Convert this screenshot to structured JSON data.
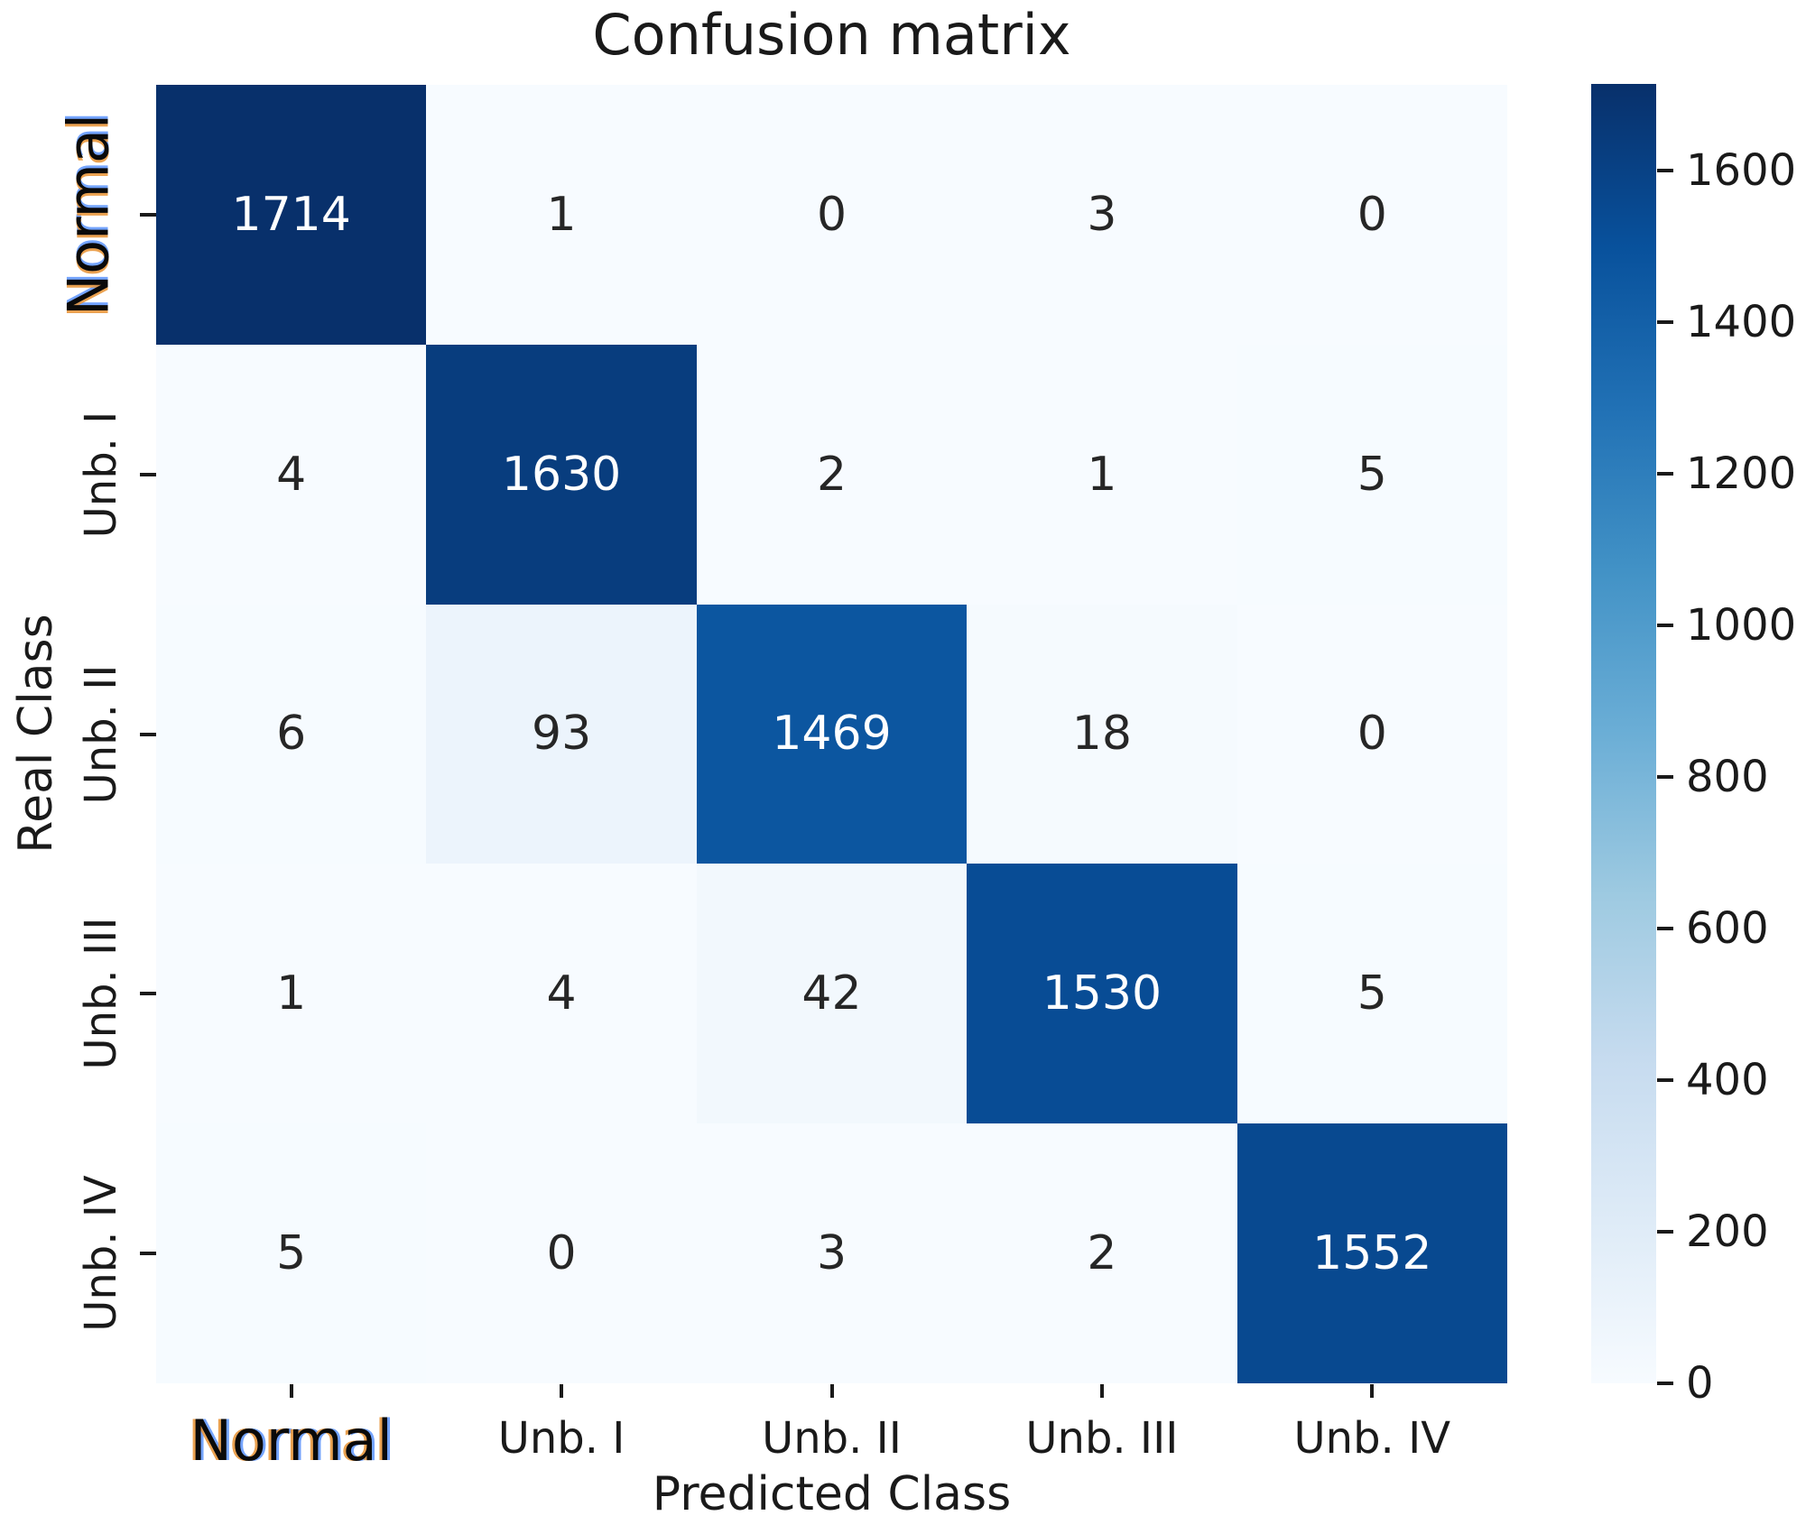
{
  "title": "Confusion matrix",
  "axes": {
    "x_label": "Predicted Class",
    "y_label": "Real Class"
  },
  "classes": [
    "Normal",
    "Unb. I",
    "Unb. II",
    "Unb. III",
    "Unb. IV"
  ],
  "colors": {
    "colormap_stops": [
      "#f7fbff",
      "#deebf7",
      "#c6dbef",
      "#9ecae1",
      "#6baed6",
      "#4292c6",
      "#2171b5",
      "#08519c",
      "#08306b"
    ],
    "annotation_on_dark": "#ffffff",
    "annotation_on_light": "#262626",
    "axis_text": "#1a1a1a",
    "tick_mark": "#1a1a1a"
  },
  "chart_data": {
    "type": "heatmap",
    "title": "Confusion matrix",
    "xlabel": "Predicted Class",
    "ylabel": "Real Class",
    "x_categories": [
      "Normal",
      "Unb. I",
      "Unb. II",
      "Unb. III",
      "Unb. IV"
    ],
    "y_categories": [
      "Normal",
      "Unb. I",
      "Unb. II",
      "Unb. III",
      "Unb. IV"
    ],
    "values": [
      [
        1714,
        1,
        0,
        3,
        0
      ],
      [
        4,
        1630,
        2,
        1,
        5
      ],
      [
        6,
        93,
        1469,
        18,
        0
      ],
      [
        1,
        4,
        42,
        1530,
        5
      ],
      [
        5,
        0,
        3,
        2,
        1552
      ]
    ],
    "colormap": "Blues",
    "vmin": 0,
    "vmax": 1714,
    "colorbar_ticks": [
      0,
      200,
      400,
      600,
      800,
      1000,
      1200,
      1400,
      1600
    ],
    "colorbar_position": "right",
    "grid": false,
    "annotated": true
  }
}
